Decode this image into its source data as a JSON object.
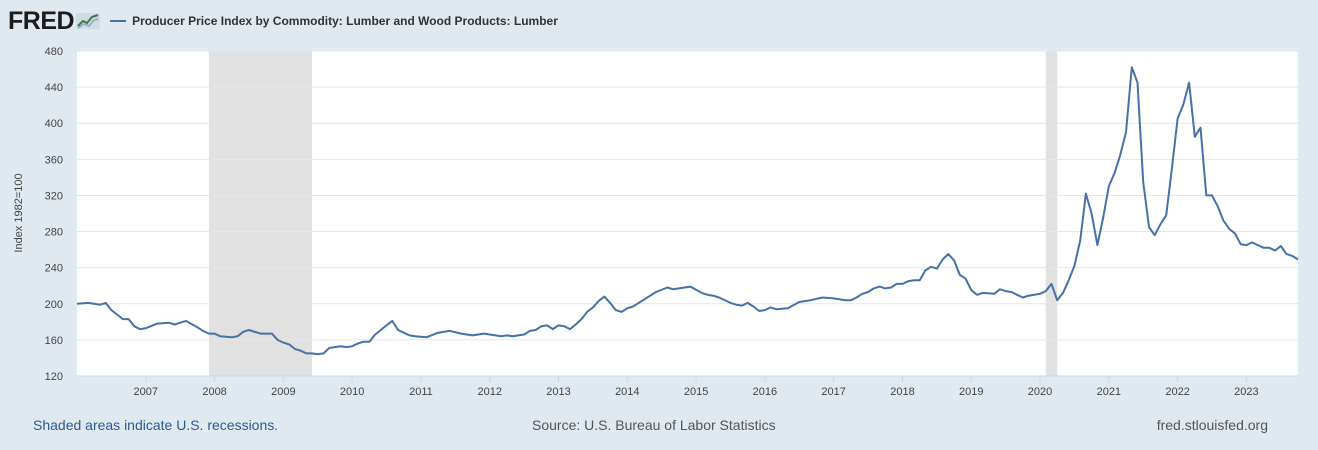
{
  "brand": {
    "logo_text": "FRED",
    "logo_icon": "fred-line-chart-icon"
  },
  "chart_data": {
    "type": "line",
    "title": "Producer Price Index by Commodity: Lumber and Wood Products: Lumber",
    "ylabel": "Index 1982=100",
    "xlabel": "",
    "ylim": [
      120,
      480
    ],
    "yticks": [
      120,
      160,
      200,
      240,
      280,
      320,
      360,
      400,
      440,
      480
    ],
    "xlim": [
      "2006-01",
      "2023-10"
    ],
    "xticks": [
      "2007",
      "2008",
      "2009",
      "2010",
      "2011",
      "2012",
      "2013",
      "2014",
      "2015",
      "2016",
      "2017",
      "2018",
      "2019",
      "2020",
      "2021",
      "2022",
      "2023"
    ],
    "grid": "horizontal",
    "legend": "top-left",
    "series_color": "#4572a7",
    "recession_color": "#e1e1e1",
    "recessions": [
      [
        "2007-12",
        "2009-06"
      ],
      [
        "2020-02",
        "2020-04"
      ]
    ],
    "series": [
      {
        "name": "Producer Price Index by Commodity: Lumber and Wood Products: Lumber",
        "x": [
          "2006-01",
          "2006-03",
          "2006-05",
          "2006-06",
          "2006-07",
          "2006-09",
          "2006-10",
          "2006-11",
          "2006-12",
          "2007-01",
          "2007-03",
          "2007-05",
          "2007-06",
          "2007-08",
          "2007-10",
          "2007-11",
          "2007-12",
          "2008-01",
          "2008-02",
          "2008-04",
          "2008-05",
          "2008-06",
          "2008-07",
          "2008-09",
          "2008-10",
          "2008-11",
          "2008-12",
          "2009-01",
          "2009-02",
          "2009-03",
          "2009-04",
          "2009-05",
          "2009-06",
          "2009-07",
          "2009-08",
          "2009-09",
          "2009-10",
          "2009-11",
          "2009-12",
          "2010-01",
          "2010-02",
          "2010-03",
          "2010-04",
          "2010-05",
          "2010-06",
          "2010-07",
          "2010-08",
          "2010-09",
          "2010-10",
          "2010-11",
          "2010-12",
          "2011-02",
          "2011-04",
          "2011-06",
          "2011-08",
          "2011-10",
          "2011-12",
          "2012-01",
          "2012-03",
          "2012-04",
          "2012-05",
          "2012-06",
          "2012-07",
          "2012-08",
          "2012-09",
          "2012-10",
          "2012-11",
          "2012-12",
          "2013-01",
          "2013-02",
          "2013-03",
          "2013-04",
          "2013-05",
          "2013-06",
          "2013-07",
          "2013-08",
          "2013-09",
          "2013-10",
          "2013-11",
          "2013-12",
          "2014-01",
          "2014-02",
          "2014-03",
          "2014-04",
          "2014-06",
          "2014-08",
          "2014-09",
          "2014-10",
          "2014-12",
          "2015-02",
          "2015-03",
          "2015-04",
          "2015-05",
          "2015-07",
          "2015-08",
          "2015-09",
          "2015-10",
          "2015-11",
          "2015-12",
          "2016-01",
          "2016-02",
          "2016-03",
          "2016-05",
          "2016-07",
          "2016-09",
          "2016-11",
          "2017-01",
          "2017-02",
          "2017-03",
          "2017-04",
          "2017-05",
          "2017-06",
          "2017-07",
          "2017-08",
          "2017-09",
          "2017-10",
          "2017-11",
          "2017-12",
          "2018-01",
          "2018-02",
          "2018-03",
          "2018-04",
          "2018-05",
          "2018-06",
          "2018-07",
          "2018-08",
          "2018-09",
          "2018-10",
          "2018-11",
          "2018-12",
          "2019-01",
          "2019-02",
          "2019-03",
          "2019-05",
          "2019-06",
          "2019-07",
          "2019-08",
          "2019-09",
          "2019-10",
          "2019-11",
          "2019-12",
          "2020-01",
          "2020-02",
          "2020-03",
          "2020-04",
          "2020-05",
          "2020-06",
          "2020-07",
          "2020-08",
          "2020-09",
          "2020-10",
          "2020-11",
          "2020-12",
          "2021-01",
          "2021-02",
          "2021-03",
          "2021-04",
          "2021-05",
          "2021-06",
          "2021-07",
          "2021-08",
          "2021-09",
          "2021-10",
          "2021-11",
          "2021-12",
          "2022-01",
          "2022-02",
          "2022-03",
          "2022-04",
          "2022-05",
          "2022-06",
          "2022-07",
          "2022-08",
          "2022-09",
          "2022-10",
          "2022-11",
          "2022-12",
          "2023-01",
          "2023-02",
          "2023-03",
          "2023-04",
          "2023-05",
          "2023-06",
          "2023-07",
          "2023-08",
          "2023-09",
          "2023-10"
        ],
        "values": [
          200,
          201,
          199,
          201,
          193,
          183,
          183,
          175,
          172,
          173,
          178,
          179,
          177,
          181,
          174,
          170,
          167,
          167,
          164,
          163,
          164,
          169,
          171,
          167,
          167,
          167,
          160,
          157,
          155,
          150,
          148,
          145,
          145,
          144,
          145,
          151,
          152,
          153,
          152,
          153,
          156,
          158,
          158,
          166,
          171,
          176,
          181,
          171,
          168,
          165,
          164,
          163,
          168,
          170,
          167,
          165,
          167,
          166,
          164,
          165,
          164,
          165,
          166,
          170,
          171,
          175,
          176,
          172,
          176,
          175,
          172,
          177,
          183,
          191,
          196,
          203,
          208,
          201,
          193,
          191,
          195,
          197,
          201,
          205,
          213,
          218,
          216,
          217,
          219,
          212,
          210,
          209,
          207,
          201,
          199,
          198,
          201,
          197,
          192,
          193,
          196,
          194,
          195,
          202,
          204,
          207,
          206,
          205,
          204,
          204,
          207,
          211,
          213,
          217,
          219,
          217,
          218,
          222,
          222,
          225,
          226,
          226,
          237,
          241,
          239,
          249,
          255,
          248,
          232,
          228,
          215,
          210,
          212,
          211,
          216,
          214,
          213,
          210,
          207,
          209,
          210,
          211,
          214,
          222,
          204,
          212,
          226,
          242,
          270,
          322,
          300,
          265,
          295,
          330,
          345,
          365,
          390,
          462,
          445,
          335,
          285,
          276,
          288,
          298,
          350,
          405,
          421,
          445,
          385,
          395,
          320,
          320,
          308,
          292,
          283,
          278,
          266,
          265,
          268,
          265,
          262,
          262,
          259,
          264,
          255,
          253,
          249
        ]
      }
    ]
  },
  "footer": {
    "recession_note": "Shaded areas indicate U.S. recessions.",
    "source": "Source: U.S. Bureau of Labor Statistics",
    "site": "fred.stlouisfed.org"
  }
}
